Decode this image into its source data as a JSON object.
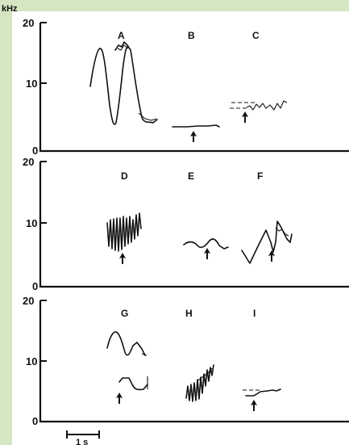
{
  "figure": {
    "unit": "kHz",
    "scale_bar_label": "1 s",
    "panels": [
      {
        "ticks": [
          "20",
          "10",
          "0"
        ],
        "spectrograms": [
          {
            "label": "A",
            "icon": "spectrogram-trace",
            "arrow": false
          },
          {
            "label": "B",
            "icon": "spectrogram-trace",
            "arrow": true
          },
          {
            "label": "C",
            "icon": "spectrogram-trace",
            "arrow": true
          }
        ]
      },
      {
        "ticks": [
          "20",
          "10",
          "0"
        ],
        "spectrograms": [
          {
            "label": "D",
            "icon": "spectrogram-trace",
            "arrow": true
          },
          {
            "label": "E",
            "icon": "spectrogram-trace",
            "arrow": true
          },
          {
            "label": "F",
            "icon": "spectrogram-trace",
            "arrow": true
          }
        ]
      },
      {
        "ticks": [
          "20",
          "10",
          "0"
        ],
        "spectrograms": [
          {
            "label": "G",
            "icon": "spectrogram-trace",
            "arrow": true
          },
          {
            "label": "H",
            "icon": "spectrogram-trace",
            "arrow": false
          },
          {
            "label": "I",
            "icon": "spectrogram-trace",
            "arrow": true
          }
        ]
      }
    ]
  },
  "colors": {
    "background": "#d4e6c2",
    "figure_background": "#ffffff",
    "ink": "#111111"
  }
}
